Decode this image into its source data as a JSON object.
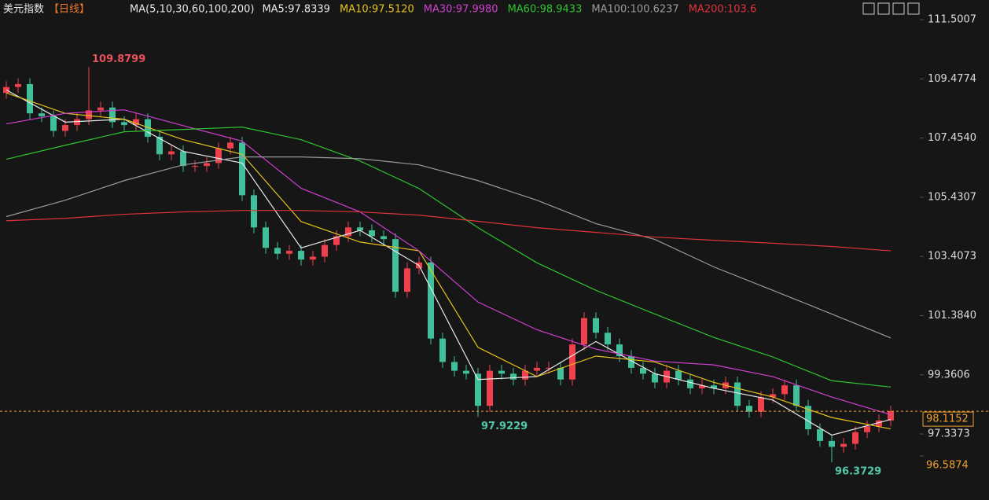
{
  "chart_data": {
    "type": "candlestick",
    "title": "美元指数",
    "period": "【日线】",
    "indicator": "MA(5,10,30,60,100,200)",
    "up_color": "#f0404e",
    "down_color": "#3fbf9a",
    "open": [
      109.0,
      109.2,
      109.3,
      108.3,
      108.2,
      107.7,
      107.9,
      108.1,
      108.4,
      108.5,
      108.0,
      107.9,
      108.1,
      107.5,
      106.9,
      107.0,
      106.5,
      106.5,
      106.6,
      107.1,
      107.3,
      105.5,
      104.4,
      103.7,
      103.5,
      103.6,
      103.3,
      103.4,
      103.8,
      104.1,
      104.4,
      104.3,
      104.1,
      104.0,
      102.2,
      103.0,
      103.2,
      100.6,
      99.8,
      99.5,
      99.4,
      98.3,
      99.5,
      99.4,
      99.2,
      99.5,
      99.6,
      99.6,
      99.2,
      100.4,
      101.3,
      100.8,
      100.4,
      100.0,
      99.6,
      99.4,
      99.1,
      99.5,
      99.2,
      98.9,
      99.0,
      98.9,
      99.1,
      98.3,
      98.1,
      98.6,
      98.7,
      99.0,
      98.3,
      97.5,
      97.1,
      96.9,
      97.0,
      97.4,
      97.6,
      97.8
    ],
    "high": [
      109.4,
      109.5,
      109.5,
      108.5,
      108.4,
      108.1,
      108.3,
      109.8799,
      108.7,
      108.7,
      108.2,
      108.3,
      108.3,
      107.7,
      107.2,
      107.2,
      106.7,
      106.8,
      107.3,
      107.5,
      107.5,
      105.7,
      104.6,
      103.9,
      103.8,
      103.8,
      103.6,
      104.0,
      104.3,
      104.6,
      104.6,
      104.5,
      104.3,
      104.2,
      103.2,
      103.4,
      103.4,
      100.8,
      100.0,
      99.7,
      99.6,
      99.7,
      99.7,
      99.6,
      99.7,
      99.8,
      99.8,
      99.8,
      100.6,
      101.5,
      101.5,
      101.0,
      100.6,
      100.2,
      99.8,
      99.6,
      99.7,
      99.7,
      99.4,
      99.2,
      99.2,
      99.3,
      99.3,
      98.5,
      98.8,
      98.9,
      99.2,
      99.2,
      98.5,
      97.7,
      97.3,
      97.2,
      97.6,
      97.8,
      98.0,
      98.3
    ],
    "low": [
      108.8,
      109.0,
      108.1,
      108.0,
      107.5,
      107.5,
      107.7,
      107.9,
      108.2,
      107.8,
      107.7,
      107.7,
      107.3,
      106.7,
      106.7,
      106.3,
      106.3,
      106.3,
      106.4,
      106.9,
      105.3,
      104.2,
      103.5,
      103.3,
      103.3,
      103.1,
      103.1,
      103.2,
      103.6,
      103.9,
      104.1,
      103.9,
      103.8,
      102.0,
      102.0,
      102.8,
      100.4,
      99.6,
      99.3,
      99.2,
      97.9229,
      98.1,
      99.2,
      99.0,
      99.0,
      99.3,
      99.4,
      99.0,
      99.0,
      100.2,
      100.6,
      100.2,
      99.8,
      99.4,
      99.2,
      98.9,
      98.9,
      99.0,
      98.7,
      98.7,
      98.7,
      98.7,
      98.1,
      97.9,
      97.9,
      98.4,
      98.5,
      98.1,
      97.3,
      96.9,
      96.3729,
      96.7,
      96.8,
      97.2,
      97.4,
      97.6
    ],
    "close": [
      109.2,
      109.3,
      108.3,
      108.2,
      107.7,
      107.9,
      108.1,
      108.4,
      108.5,
      108.0,
      107.9,
      108.1,
      107.5,
      106.9,
      107.0,
      106.5,
      106.5,
      106.6,
      107.1,
      107.3,
      105.5,
      104.4,
      103.7,
      103.5,
      103.6,
      103.3,
      103.4,
      103.8,
      104.1,
      104.4,
      104.3,
      104.1,
      104.0,
      102.2,
      103.0,
      103.2,
      100.6,
      99.8,
      99.5,
      99.4,
      98.3,
      99.5,
      99.4,
      99.2,
      99.5,
      99.6,
      99.6,
      99.2,
      100.4,
      101.3,
      100.8,
      100.4,
      100.0,
      99.6,
      99.4,
      99.1,
      99.5,
      99.2,
      98.9,
      99.0,
      98.9,
      99.1,
      98.3,
      98.1,
      98.6,
      98.7,
      99.0,
      98.3,
      97.5,
      97.1,
      96.9,
      97.0,
      97.4,
      97.6,
      97.8,
      98.12
    ],
    "series": [
      {
        "name": "MA5:97.8339",
        "color": "#e8e8e8",
        "x": [
          0,
          5,
          10,
          15,
          20,
          25,
          30,
          35,
          40,
          45,
          50,
          55,
          60,
          65,
          70,
          75
        ],
        "values": [
          109.1,
          108.0,
          108.1,
          107.0,
          106.6,
          103.7,
          104.3,
          103.1,
          99.2,
          99.3,
          100.5,
          99.4,
          98.9,
          98.5,
          97.3,
          97.8339
        ]
      },
      {
        "name": "MA10:97.5120",
        "color": "#e6c21a",
        "x": [
          0,
          5,
          10,
          15,
          20,
          25,
          30,
          35,
          40,
          45,
          50,
          55,
          60,
          65,
          70,
          75
        ],
        "values": [
          109.0,
          108.3,
          108.1,
          107.4,
          106.9,
          104.6,
          103.9,
          103.6,
          100.3,
          99.3,
          100.0,
          99.8,
          99.1,
          98.6,
          97.9,
          97.512
        ]
      },
      {
        "name": "MA30:97.9980",
        "color": "#d23fd2",
        "x": [
          0,
          5,
          10,
          15,
          20,
          25,
          30,
          35,
          40,
          45,
          50,
          55,
          60,
          65,
          70,
          75
        ],
        "values": [
          107.94,
          108.3,
          108.42,
          107.88,
          107.35,
          105.74,
          104.93,
          103.6,
          101.85,
          100.9,
          100.24,
          99.83,
          99.7,
          99.3,
          98.6,
          97.998
        ]
      },
      {
        "name": "MA60:98.9433",
        "color": "#2fc42f",
        "x": [
          0,
          5,
          10,
          15,
          20,
          25,
          30,
          35,
          40,
          45,
          50,
          55,
          60,
          65,
          70,
          75
        ],
        "values": [
          106.73,
          107.21,
          107.67,
          107.75,
          107.83,
          107.4,
          106.67,
          105.73,
          104.39,
          103.19,
          102.25,
          101.44,
          100.64,
          99.97,
          99.16,
          98.9433
        ]
      },
      {
        "name": "MA100:100.6237",
        "color": "#9a9a9a",
        "x": [
          0,
          5,
          10,
          15,
          20,
          25,
          30,
          35,
          40,
          45,
          50,
          55,
          60,
          65,
          70,
          75
        ],
        "values": [
          104.77,
          105.33,
          106.0,
          106.54,
          106.81,
          106.81,
          106.75,
          106.54,
          106.0,
          105.33,
          104.53,
          103.99,
          103.05,
          102.25,
          101.44,
          100.6237
        ]
      },
      {
        "name": "MA200:103.6",
        "color": "#e0333a",
        "x": [
          0,
          5,
          10,
          15,
          20,
          25,
          30,
          35,
          40,
          45,
          50,
          55,
          60,
          65,
          70,
          75
        ],
        "values": [
          104.63,
          104.71,
          104.85,
          104.93,
          104.98,
          104.98,
          104.93,
          104.82,
          104.61,
          104.39,
          104.23,
          104.07,
          103.96,
          103.86,
          103.75,
          103.6
        ]
      }
    ],
    "annotations": [
      {
        "text": "109.8799",
        "x": 7,
        "color": "#e8505a"
      },
      {
        "text": "97.9229",
        "x": 40,
        "color": "#52c8a8"
      },
      {
        "text": "96.3729",
        "x": 70,
        "color": "#52c8a8"
      }
    ],
    "current_price": 98.1152,
    "bottom_price": 96.5874,
    "ylim": [
      95.78,
      111.96
    ],
    "yticks": [
      111.5007,
      109.4774,
      {
        "value": 107.454,
        "label": "107.4540"
      },
      105.4307,
      103.4073,
      {
        "value": 101.384,
        "label": "101.3840"
      },
      99.3606,
      97.3373
    ]
  }
}
